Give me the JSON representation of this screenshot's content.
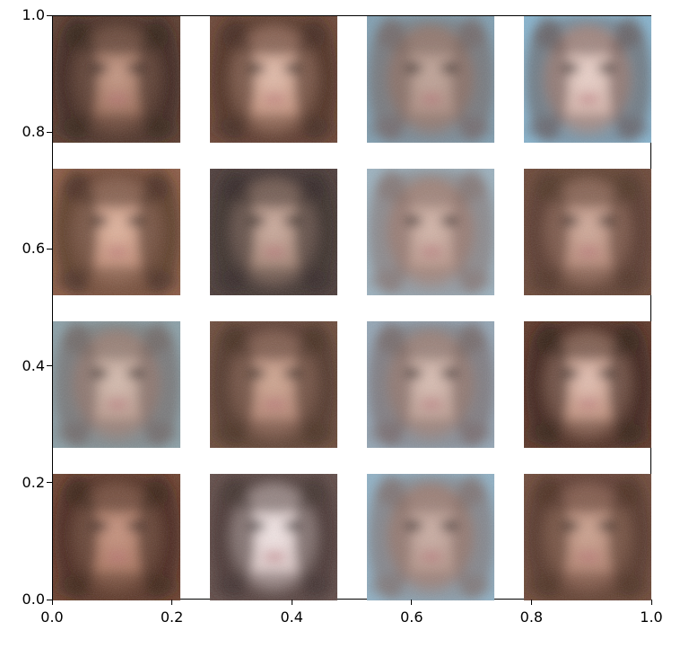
{
  "figure": {
    "description_none": "",
    "axes": {
      "x_ticks": [
        "0.0",
        "0.2",
        "0.4",
        "0.6",
        "0.8",
        "1.0"
      ],
      "y_ticks": [
        "0.0",
        "0.2",
        "0.4",
        "0.6",
        "0.8",
        "1.0"
      ],
      "xlim": [
        0.0,
        1.0
      ],
      "ylim": [
        0.0,
        1.0
      ]
    },
    "grid": {
      "rows": 4,
      "cols": 4,
      "tiles": [
        {
          "tone": "#9a6a55",
          "hair": "#2a1a14",
          "skin": "#c89a86",
          "bg": "#5a3a2c"
        },
        {
          "tone": "#c4907a",
          "hair": "#3a2218",
          "skin": "#e4bfae",
          "bg": "#6a4434"
        },
        {
          "tone": "#a98a7e",
          "hair": "#6e5a54",
          "skin": "#c2a69a",
          "bg": "#7f9fb2"
        },
        {
          "tone": "#d2b0a6",
          "hair": "#5d4a48",
          "skin": "#ecd4cc",
          "bg": "#86b4cf"
        },
        {
          "tone": "#c08a73",
          "hair": "#3a2418",
          "skin": "#e3b7a1",
          "bg": "#8b5a44"
        },
        {
          "tone": "#a38272",
          "hair": "#2e2422",
          "skin": "#cfaea0",
          "bg": "#4b3a38"
        },
        {
          "tone": "#b69488",
          "hair": "#7d6660",
          "skin": "#d6b8ac",
          "bg": "#9bb2c0"
        },
        {
          "tone": "#b48573",
          "hair": "#4a3024",
          "skin": "#d3ad9d",
          "bg": "#6a4636"
        },
        {
          "tone": "#b7978a",
          "hair": "#6a5a55",
          "skin": "#d8bfb2",
          "bg": "#8aa0a8"
        },
        {
          "tone": "#b28270",
          "hair": "#3e281e",
          "skin": "#d2a994",
          "bg": "#6b4a3a"
        },
        {
          "tone": "#b99a8f",
          "hair": "#6d5a56",
          "skin": "#dcc1b6",
          "bg": "#93a6b6"
        },
        {
          "tone": "#bf8d78",
          "hair": "#2a1812",
          "skin": "#e6c3b6",
          "bg": "#5c3526"
        },
        {
          "tone": "#a9735c",
          "hair": "#2e1a12",
          "skin": "#c89480",
          "bg": "#6b3f2c"
        },
        {
          "tone": "#d9c4c2",
          "hair": "#3a2c2a",
          "skin": "#f4e8e8",
          "bg": "#5f4a46"
        },
        {
          "tone": "#b09186",
          "hair": "#7a625c",
          "skin": "#cdb0a6",
          "bg": "#8fb1c6"
        },
        {
          "tone": "#af7e6b",
          "hair": "#44291e",
          "skin": "#cfa592",
          "bg": "#6d4838"
        }
      ]
    }
  }
}
